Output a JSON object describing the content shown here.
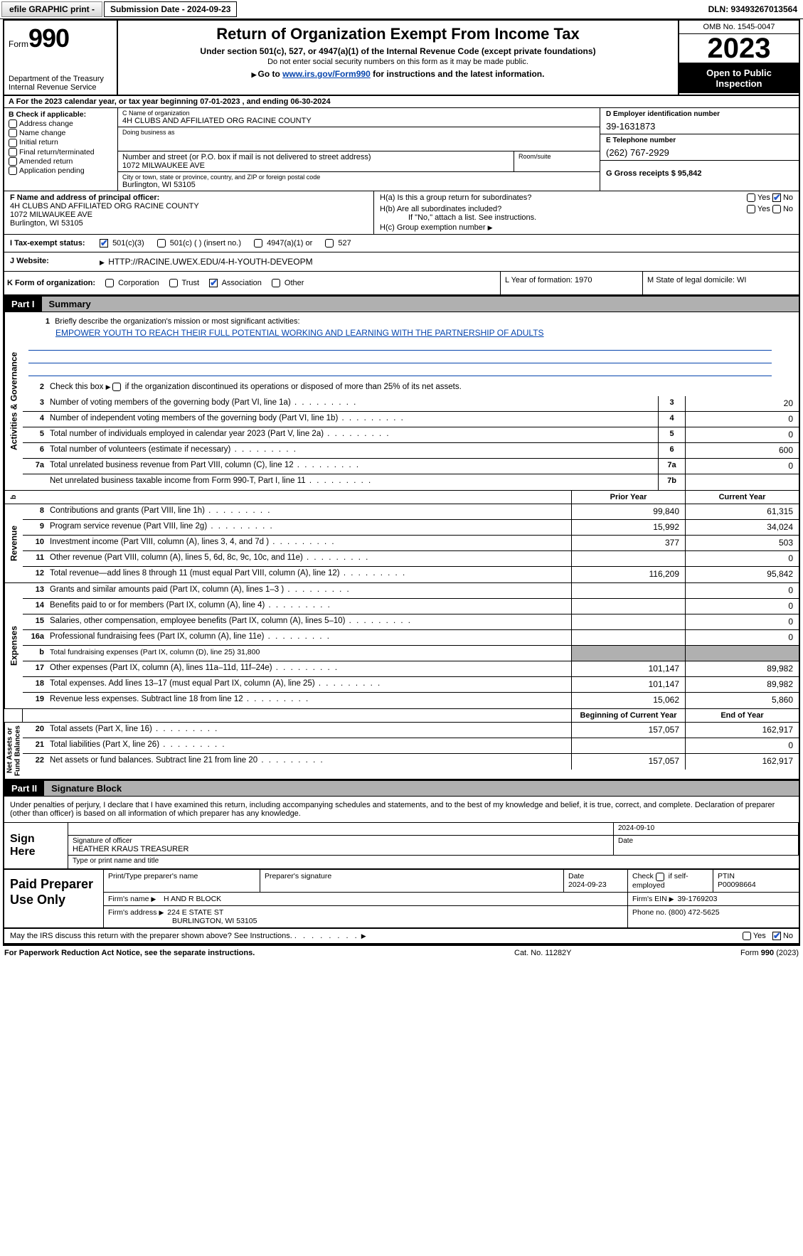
{
  "toolbar": {
    "efile": "efile GRAPHIC print -",
    "submission": "Submission Date - 2024-09-23",
    "dln": "DLN: 93493267013564"
  },
  "header": {
    "form_word": "Form",
    "form_num": "990",
    "title": "Return of Organization Exempt From Income Tax",
    "sub": "Under section 501(c), 527, or 4947(a)(1) of the Internal Revenue Code (except private foundations)",
    "sub2": "Do not enter social security numbers on this form as it may be made public.",
    "sub3_pre": "Go to ",
    "sub3_link": "www.irs.gov/Form990",
    "sub3_post": " for instructions and the latest information.",
    "dept": "Department of the Treasury\nInternal Revenue Service",
    "omb": "OMB No. 1545-0047",
    "year": "2023",
    "open": "Open to Public Inspection"
  },
  "rowA": "A   For the 2023 calendar year, or tax year beginning 07-01-2023    , and ending 06-30-2024",
  "boxB": {
    "label": "B Check if applicable:",
    "items": [
      "Address change",
      "Name change",
      "Initial return",
      "Final return/terminated",
      "Amended return",
      "Application pending"
    ]
  },
  "boxC": {
    "name_lbl": "C Name of organization",
    "name": "4H CLUBS AND AFFILIATED ORG RACINE COUNTY",
    "dba_lbl": "Doing business as",
    "addr_lbl": "Number and street (or P.O. box if mail is not delivered to street address)",
    "room_lbl": "Room/suite",
    "addr": "1072 MILWAUKEE AVE",
    "city_lbl": "City or town, state or province, country, and ZIP or foreign postal code",
    "city": "Burlington, WI  53105"
  },
  "boxD": {
    "lbl": "D Employer identification number",
    "val": "39-1631873"
  },
  "boxE": {
    "lbl": "E Telephone number",
    "val": "(262) 767-2929"
  },
  "boxG": {
    "lbl": "G Gross receipts $ 95,842"
  },
  "boxF": {
    "lbl": "F  Name and address of principal officer:",
    "l1": "4H CLUBS AND AFFILIATED ORG RACINE COUNTY",
    "l2": "1072 MILWAUKEE AVE",
    "l3": "Burlington, WI  53105"
  },
  "boxH": {
    "a": "H(a)  Is this a group return for subordinates?",
    "b": "H(b)  Are all subordinates included?",
    "bnote": "If \"No,\" attach a list. See instructions.",
    "c": "H(c)  Group exemption number ",
    "yes": "Yes",
    "no": "No"
  },
  "rowI": {
    "lbl": "I     Tax-exempt status:",
    "o1": "501(c)(3)",
    "o2": "501(c) (  ) (insert no.)",
    "o3": "4947(a)(1) or",
    "o4": "527"
  },
  "rowJ": {
    "lbl": "J    Website:",
    "val": " HTTP://RACINE.UWEX.EDU/4-H-YOUTH-DEVEOPM"
  },
  "rowK": {
    "lbl": "K Form of organization:",
    "opts": [
      "Corporation",
      "Trust",
      "Association",
      "Other"
    ],
    "L": "L Year of formation: 1970",
    "M": "M State of legal domicile: WI"
  },
  "part1": {
    "hdr": "Part I",
    "title": "Summary"
  },
  "mission": {
    "lbl": "Briefly describe the organization's mission or most significant activities:",
    "txt": "EMPOWER YOUTH TO REACH THEIR FULL POTENTIAL WORKING AND LEARNING WITH THE PARTNERSHIP OF ADULTS"
  },
  "gov": {
    "l2": "Check this box        if the organization discontinued its operations or disposed of more than 25% of its net assets.",
    "rows": [
      {
        "n": "3",
        "t": "Number of voting members of the governing body (Part VI, line 1a)",
        "b": "3",
        "v": "20"
      },
      {
        "n": "4",
        "t": "Number of independent voting members of the governing body (Part VI, line 1b)",
        "b": "4",
        "v": "0"
      },
      {
        "n": "5",
        "t": "Total number of individuals employed in calendar year 2023 (Part V, line 2a)",
        "b": "5",
        "v": "0"
      },
      {
        "n": "6",
        "t": "Total number of volunteers (estimate if necessary)",
        "b": "6",
        "v": "600"
      },
      {
        "n": "7a",
        "t": "Total unrelated business revenue from Part VIII, column (C), line 12",
        "b": "7a",
        "v": "0"
      },
      {
        "n": "",
        "t": "Net unrelated business taxable income from Form 990-T, Part I, line 11",
        "b": "7b",
        "v": ""
      }
    ]
  },
  "colhdr": {
    "prior": "Prior Year",
    "curr": "Current Year",
    "boy": "Beginning of Current Year",
    "eoy": "End of Year"
  },
  "revenue": [
    {
      "n": "8",
      "t": "Contributions and grants (Part VIII, line 1h)",
      "p": "99,840",
      "c": "61,315"
    },
    {
      "n": "9",
      "t": "Program service revenue (Part VIII, line 2g)",
      "p": "15,992",
      "c": "34,024"
    },
    {
      "n": "10",
      "t": "Investment income (Part VIII, column (A), lines 3, 4, and 7d )",
      "p": "377",
      "c": "503"
    },
    {
      "n": "11",
      "t": "Other revenue (Part VIII, column (A), lines 5, 6d, 8c, 9c, 10c, and 11e)",
      "p": "",
      "c": "0"
    },
    {
      "n": "12",
      "t": "Total revenue—add lines 8 through 11 (must equal Part VIII, column (A), line 12)",
      "p": "116,209",
      "c": "95,842"
    }
  ],
  "expenses": [
    {
      "n": "13",
      "t": "Grants and similar amounts paid (Part IX, column (A), lines 1–3 )",
      "p": "",
      "c": "0"
    },
    {
      "n": "14",
      "t": "Benefits paid to or for members (Part IX, column (A), line 4)",
      "p": "",
      "c": "0"
    },
    {
      "n": "15",
      "t": "Salaries, other compensation, employee benefits (Part IX, column (A), lines 5–10)",
      "p": "",
      "c": "0"
    },
    {
      "n": "16a",
      "t": "Professional fundraising fees (Part IX, column (A), line 11e)",
      "p": "",
      "c": "0"
    },
    {
      "n": "b",
      "t": "Total fundraising expenses (Part IX, column (D), line 25) 31,800",
      "shade": true
    },
    {
      "n": "17",
      "t": "Other expenses (Part IX, column (A), lines 11a–11d, 11f–24e)",
      "p": "101,147",
      "c": "89,982"
    },
    {
      "n": "18",
      "t": "Total expenses. Add lines 13–17 (must equal Part IX, column (A), line 25)",
      "p": "101,147",
      "c": "89,982"
    },
    {
      "n": "19",
      "t": "Revenue less expenses. Subtract line 18 from line 12",
      "p": "15,062",
      "c": "5,860"
    }
  ],
  "netassets": [
    {
      "n": "20",
      "t": "Total assets (Part X, line 16)",
      "p": "157,057",
      "c": "162,917"
    },
    {
      "n": "21",
      "t": "Total liabilities (Part X, line 26)",
      "p": "",
      "c": "0"
    },
    {
      "n": "22",
      "t": "Net assets or fund balances. Subtract line 21 from line 20",
      "p": "157,057",
      "c": "162,917"
    }
  ],
  "vlabels": {
    "gov": "Activities & Governance",
    "rev": "Revenue",
    "exp": "Expenses",
    "net": "Net Assets or\nFund Balances"
  },
  "part2": {
    "hdr": "Part II",
    "title": "Signature Block"
  },
  "sig": {
    "intro": "Under penalties of perjury, I declare that I have examined this return, including accompanying schedules and statements, and to the best of my knowledge and belief, it is true, correct, and complete. Declaration of preparer (other than officer) is based on all information of which preparer has any knowledge.",
    "here": "Sign Here",
    "sigoff": "Signature of officer",
    "officer": "HEATHER KRAUS TREASURER",
    "typelbl": "Type or print name and title",
    "date": "2024-09-10",
    "datelbl": "Date"
  },
  "paid": {
    "title": "Paid Preparer Use Only",
    "h1": "Print/Type preparer's name",
    "h2": "Preparer's signature",
    "h3": "Date",
    "h4": "Check         if self-employed",
    "h5": "PTIN",
    "date": "2024-09-23",
    "ptin": "P00098664",
    "firmname_lbl": "Firm's name",
    "firmname": "H AND R BLOCK",
    "firmein_lbl": "Firm's EIN",
    "firmein": "39-1769203",
    "firmaddr_lbl": "Firm's address",
    "firmaddr": "224 E STATE ST",
    "firmcity": "BURLINGTON, WI  53105",
    "phone_lbl": "Phone no.",
    "phone": "(800) 472-5625"
  },
  "discuss": {
    "txt": "May the IRS discuss this return with the preparer shown above? See Instructions.",
    "yes": "Yes",
    "no": "No"
  },
  "footer": {
    "l": "For Paperwork Reduction Act Notice, see the separate instructions.",
    "m": "Cat. No. 11282Y",
    "r": "Form 990 (2023)"
  },
  "colors": {
    "link": "#0645ad",
    "shade": "#b0b0b0",
    "check": "#2257c9"
  }
}
